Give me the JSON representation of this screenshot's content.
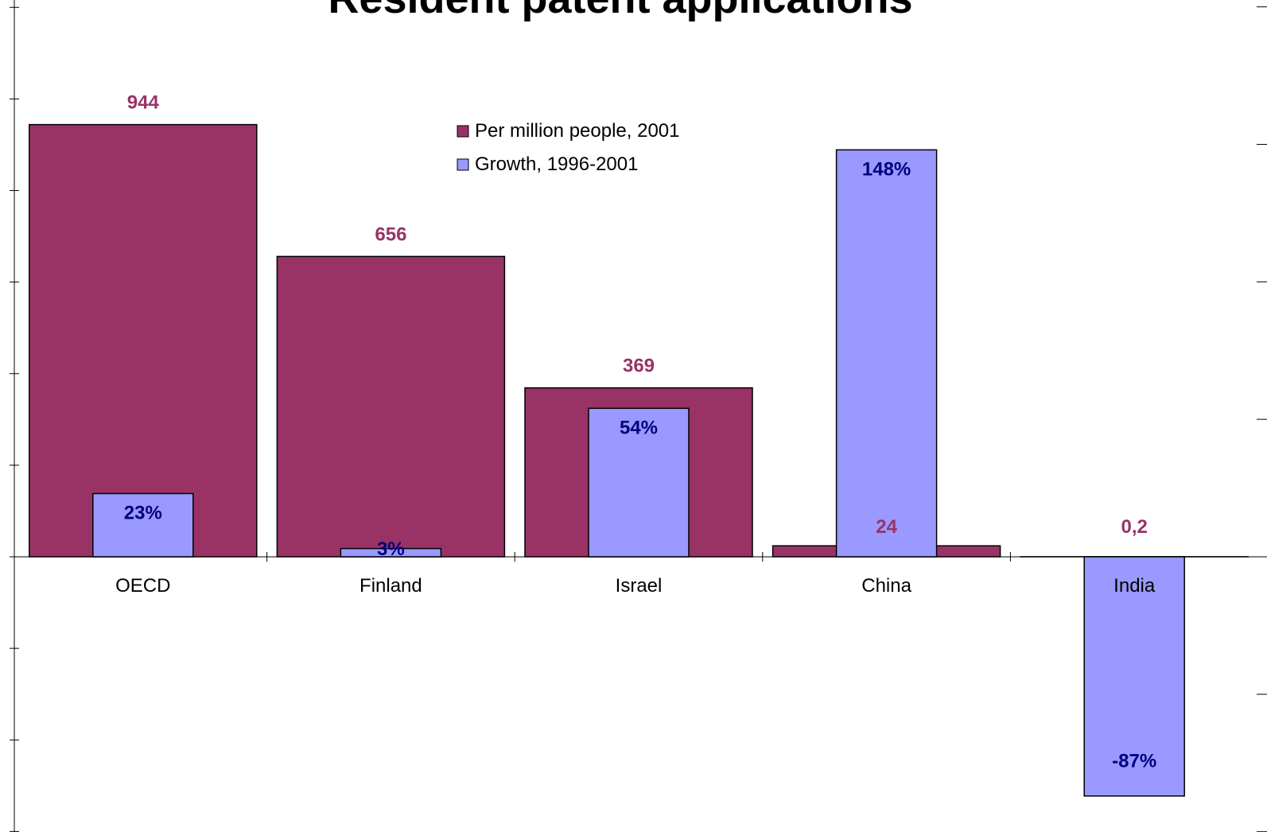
{
  "chart_data": {
    "type": "bar",
    "title": "Resident patent applications",
    "categories": [
      "OECD",
      "Finland",
      "Israel",
      "China",
      "India"
    ],
    "series": [
      {
        "name": "Per million people, 2001",
        "axis": "primary",
        "values": [
          944,
          656,
          369,
          24,
          0.2
        ],
        "labels": [
          "944",
          "656",
          "369",
          "24",
          "0,2"
        ],
        "color": "#993366",
        "label_color": "#993366"
      },
      {
        "name": "Growth, 1996-2001",
        "axis": "secondary",
        "values": [
          23,
          3,
          54,
          148,
          -87
        ],
        "labels": [
          "23%",
          "3%",
          "54%",
          "148%",
          "-87%"
        ],
        "color": "#9999FF",
        "label_color": "#000080"
      }
    ],
    "primary_ylim": [
      -600,
      1200
    ],
    "secondary_ylim": [
      -100,
      200
    ],
    "legend_position": "top-center",
    "grid": false
  }
}
